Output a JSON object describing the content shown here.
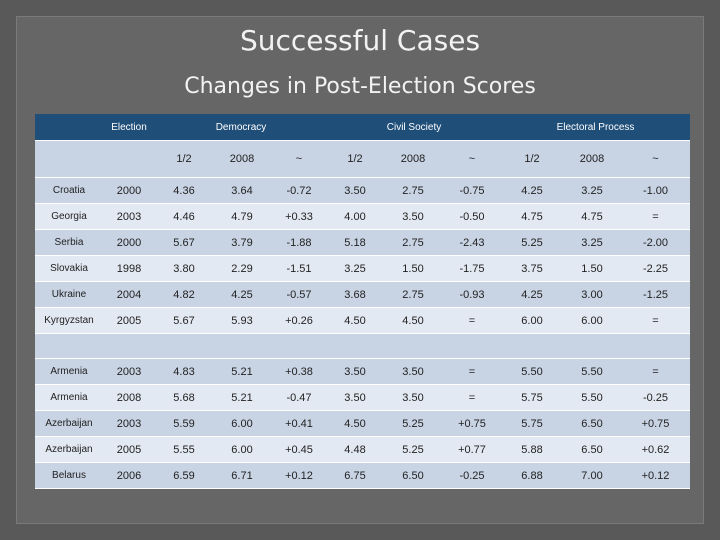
{
  "title": "Successful Cases",
  "subtitle": "Changes in Post-Election Scores",
  "header": {
    "election": "Election",
    "democracy": "Democracy",
    "civil_society": "Civil Society",
    "electoral_process": "Electoral Process"
  },
  "subheader": [
    "1/2",
    "2008",
    "~",
    "1/2",
    "2008",
    "~",
    "1/2",
    "2008",
    "~"
  ],
  "rows": [
    [
      "Croatia",
      "2000",
      "4.36",
      "3.64",
      "-0.72",
      "3.50",
      "2.75",
      "-0.75",
      "4.25",
      "3.25",
      "-1.00"
    ],
    [
      "Georgia",
      "2003",
      "4.46",
      "4.79",
      "+0.33",
      "4.00",
      "3.50",
      "-0.50",
      "4.75",
      "4.75",
      "="
    ],
    [
      "Serbia",
      "2000",
      "5.67",
      "3.79",
      "-1.88",
      "5.18",
      "2.75",
      "-2.43",
      "5.25",
      "3.25",
      "-2.00"
    ],
    [
      "Slovakia",
      "1998",
      "3.80",
      "2.29",
      "-1.51",
      "3.25",
      "1.50",
      "-1.75",
      "3.75",
      "1.50",
      "-2.25"
    ],
    [
      "Ukraine",
      "2004",
      "4.82",
      "4.25",
      "-0.57",
      "3.68",
      "2.75",
      "-0.93",
      "4.25",
      "3.00",
      "-1.25"
    ],
    [
      "Kyrgyzstan",
      "2005",
      "5.67",
      "5.93",
      "+0.26",
      "4.50",
      "4.50",
      "=",
      "6.00",
      "6.00",
      "="
    ],
    [
      "Armenia",
      "2003",
      "4.83",
      "5.21",
      "+0.38",
      "3.50",
      "3.50",
      "=",
      "5.50",
      "5.50",
      "="
    ],
    [
      "Armenia",
      "2008",
      "5.68",
      "5.21",
      "-0.47",
      "3.50",
      "3.50",
      "=",
      "5.75",
      "5.50",
      "-0.25"
    ],
    [
      "Azerbaijan",
      "2003",
      "5.59",
      "6.00",
      "+0.41",
      "4.50",
      "5.25",
      "+0.75",
      "5.75",
      "6.50",
      "+0.75"
    ],
    [
      "Azerbaijan",
      "2005",
      "5.55",
      "6.00",
      "+0.45",
      "4.48",
      "5.25",
      "+0.77",
      "5.88",
      "6.50",
      "+0.62"
    ],
    [
      "Belarus",
      "2006",
      "6.59",
      "6.71",
      "+0.12",
      "6.75",
      "6.50",
      "-0.25",
      "6.88",
      "7.00",
      "+0.12"
    ]
  ]
}
